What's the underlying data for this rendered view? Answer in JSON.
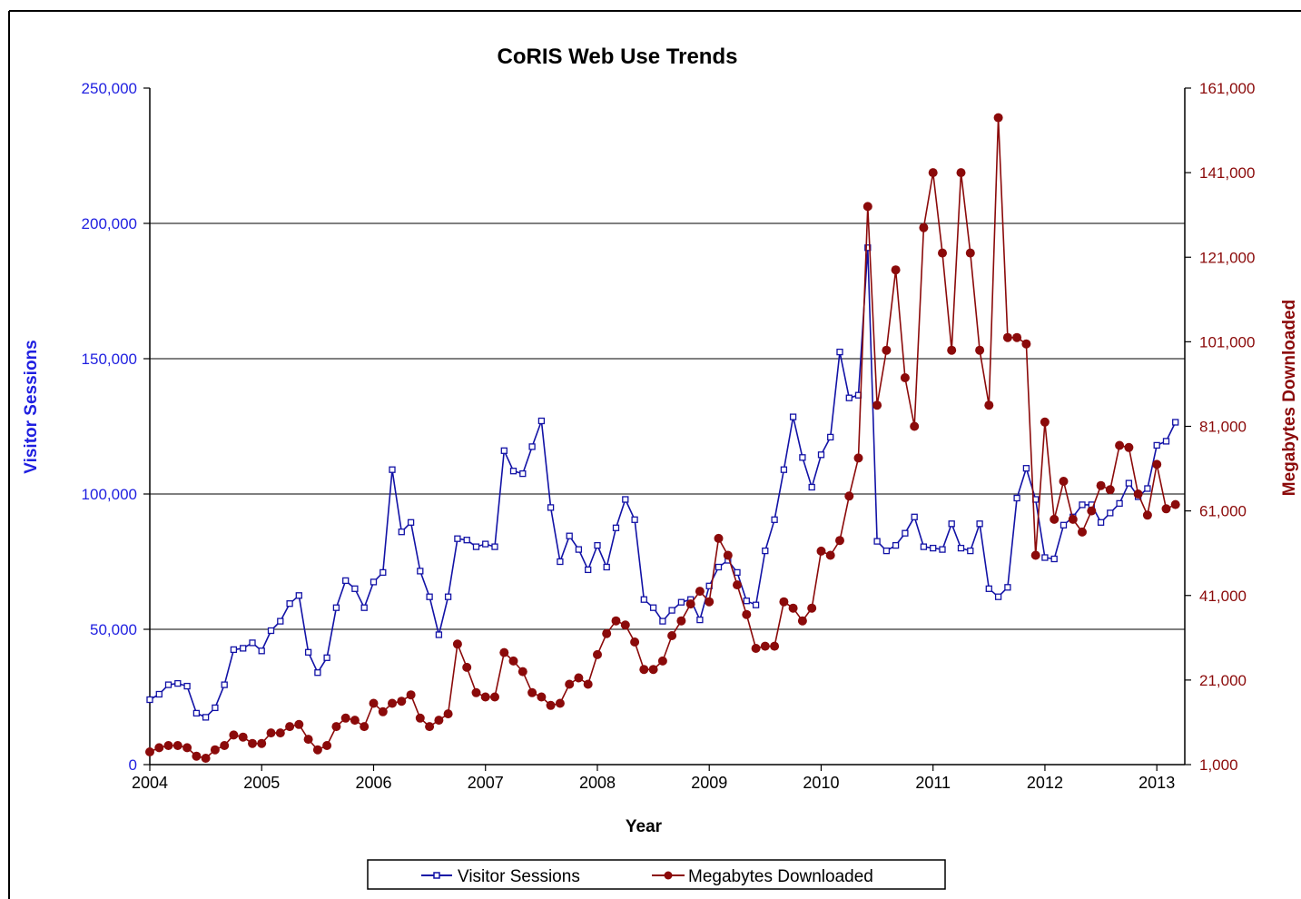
{
  "colors": {
    "sessions": "#1212a6",
    "sessions_axis": "#1f1fe0",
    "downloads": "#8b0a0a",
    "downloads_axis": "#8b0a0a",
    "grid": "#000000",
    "frame": "#000000"
  },
  "chart_data": {
    "type": "line",
    "title": "CoRIS Web Use Trends",
    "xlabel": "Year",
    "ylabel_left": "Visitor Sessions",
    "ylabel_right": "Megabytes Downloaded",
    "xlim": [
      2004,
      2013.25
    ],
    "ylim_left": [
      0,
      250000
    ],
    "ylim_right": [
      1000,
      161000
    ],
    "x_ticks": [
      "2004",
      "2005",
      "2006",
      "2007",
      "2008",
      "2009",
      "2010",
      "2011",
      "2012",
      "2013"
    ],
    "y_ticks_left": [
      "0",
      "50,000",
      "100,000",
      "150,000",
      "200,000",
      "250,000"
    ],
    "y_ticks_right": [
      "1,000",
      "21,000",
      "41,000",
      "61,000",
      "81,000",
      "101,000",
      "121,000",
      "141,000",
      "161,000"
    ],
    "grid": "horizontal major gridlines",
    "legend_position": "bottom",
    "start": "2004-01",
    "series": [
      {
        "name": "Visitor Sessions",
        "axis": "left",
        "marker": "square",
        "values": [
          24000,
          26000,
          29500,
          30000,
          29000,
          19000,
          17500,
          21000,
          29500,
          42500,
          43000,
          45000,
          42000,
          49500,
          53000,
          59500,
          62500,
          41500,
          34000,
          39500,
          58000,
          68000,
          65000,
          58000,
          67500,
          71000,
          109000,
          86000,
          89500,
          71500,
          62000,
          48000,
          62000,
          83500,
          83000,
          80500,
          81500,
          80500,
          116000,
          108500,
          107500,
          117500,
          127000,
          95000,
          75000,
          84500,
          79500,
          72000,
          81000,
          73000,
          87500,
          98000,
          90500,
          61000,
          58000,
          53000,
          57000,
          60000,
          61000,
          53500,
          66000,
          73000,
          75500,
          71000,
          60500,
          59000,
          79000,
          90500,
          109000,
          128500,
          113500,
          102500,
          114500,
          121000,
          152500,
          135500,
          136500,
          191000,
          82500,
          79000,
          81000,
          85500,
          91500,
          80500,
          80000,
          79500,
          89000,
          80000,
          79000,
          89000,
          65000,
          62000,
          65500,
          98500,
          109500,
          98000,
          76500,
          76000,
          88500,
          91500,
          96000,
          96000,
          89500,
          93000,
          96500,
          104000,
          99000,
          102000,
          118000,
          119500,
          126500
        ]
      },
      {
        "name": "Megabytes Downloaded",
        "axis": "right",
        "marker": "circle",
        "values": [
          4000,
          5000,
          5500,
          5500,
          5000,
          3000,
          2500,
          4500,
          5500,
          8000,
          7500,
          6000,
          6000,
          8500,
          8500,
          10000,
          10500,
          7000,
          4500,
          5500,
          10000,
          12000,
          11500,
          10000,
          15500,
          13500,
          15500,
          16000,
          17500,
          12000,
          10000,
          11500,
          13000,
          29500,
          24000,
          18000,
          17000,
          17000,
          27500,
          25500,
          23000,
          18000,
          17000,
          15000,
          15500,
          20000,
          21500,
          20000,
          27000,
          32000,
          35000,
          34000,
          30000,
          23500,
          23500,
          25500,
          31500,
          35000,
          39000,
          42000,
          39500,
          54500,
          50500,
          43500,
          36500,
          28500,
          29000,
          29000,
          39500,
          38000,
          35000,
          38000,
          51500,
          50500,
          54000,
          64500,
          73500,
          133000,
          86000,
          99000,
          118000,
          92500,
          81000,
          128000,
          141000,
          122000,
          99000,
          141000,
          122000,
          99000,
          86000,
          154000,
          102000,
          102000,
          100500,
          50500,
          82000,
          59000,
          68000,
          59000,
          56000,
          61000,
          67000,
          66000,
          76500,
          76000,
          65000,
          60000,
          72000,
          61500,
          62500
        ]
      }
    ]
  }
}
